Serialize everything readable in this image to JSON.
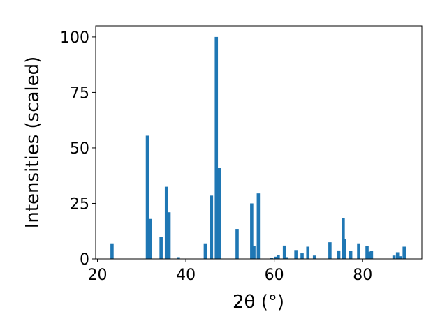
{
  "chart_data": {
    "type": "bar",
    "title": "",
    "xlabel": "2θ (°)",
    "ylabel": "Intensities (scaled)",
    "xlim": [
      19.6,
      93.4
    ],
    "ylim": [
      0,
      105
    ],
    "x_ticks": [
      20,
      40,
      60,
      80
    ],
    "y_ticks": [
      0,
      25,
      50,
      75,
      100
    ],
    "grid": false,
    "legend": "none",
    "bar_color": "#1f77b4",
    "bars": [
      {
        "x": 23.3,
        "y": 7
      },
      {
        "x": 31.3,
        "y": 55.5
      },
      {
        "x": 31.9,
        "y": 18
      },
      {
        "x": 34.4,
        "y": 10
      },
      {
        "x": 35.6,
        "y": 32.5
      },
      {
        "x": 36.2,
        "y": 21
      },
      {
        "x": 38.3,
        "y": 0.8
      },
      {
        "x": 44.4,
        "y": 7
      },
      {
        "x": 45.8,
        "y": 28.5
      },
      {
        "x": 46.9,
        "y": 100
      },
      {
        "x": 47.6,
        "y": 41
      },
      {
        "x": 51.6,
        "y": 13.5
      },
      {
        "x": 54.9,
        "y": 25
      },
      {
        "x": 55.4,
        "y": 5.8
      },
      {
        "x": 56.4,
        "y": 29.5
      },
      {
        "x": 59.4,
        "y": 0.5
      },
      {
        "x": 60.4,
        "y": 1
      },
      {
        "x": 60.9,
        "y": 1.8
      },
      {
        "x": 62.3,
        "y": 6
      },
      {
        "x": 62.8,
        "y": 0.8
      },
      {
        "x": 64.9,
        "y": 4
      },
      {
        "x": 66.3,
        "y": 2.5
      },
      {
        "x": 67.6,
        "y": 5.5
      },
      {
        "x": 69.1,
        "y": 1.5
      },
      {
        "x": 72.6,
        "y": 7.5
      },
      {
        "x": 74.6,
        "y": 3.8
      },
      {
        "x": 75.6,
        "y": 18.5
      },
      {
        "x": 75.9,
        "y": 9
      },
      {
        "x": 77.3,
        "y": 3.5
      },
      {
        "x": 79.1,
        "y": 7
      },
      {
        "x": 81.0,
        "y": 5.8
      },
      {
        "x": 81.5,
        "y": 3.2
      },
      {
        "x": 82.0,
        "y": 3.5
      },
      {
        "x": 87.1,
        "y": 1.5
      },
      {
        "x": 87.9,
        "y": 3
      },
      {
        "x": 88.6,
        "y": 1.2
      },
      {
        "x": 89.4,
        "y": 5.5
      }
    ]
  }
}
